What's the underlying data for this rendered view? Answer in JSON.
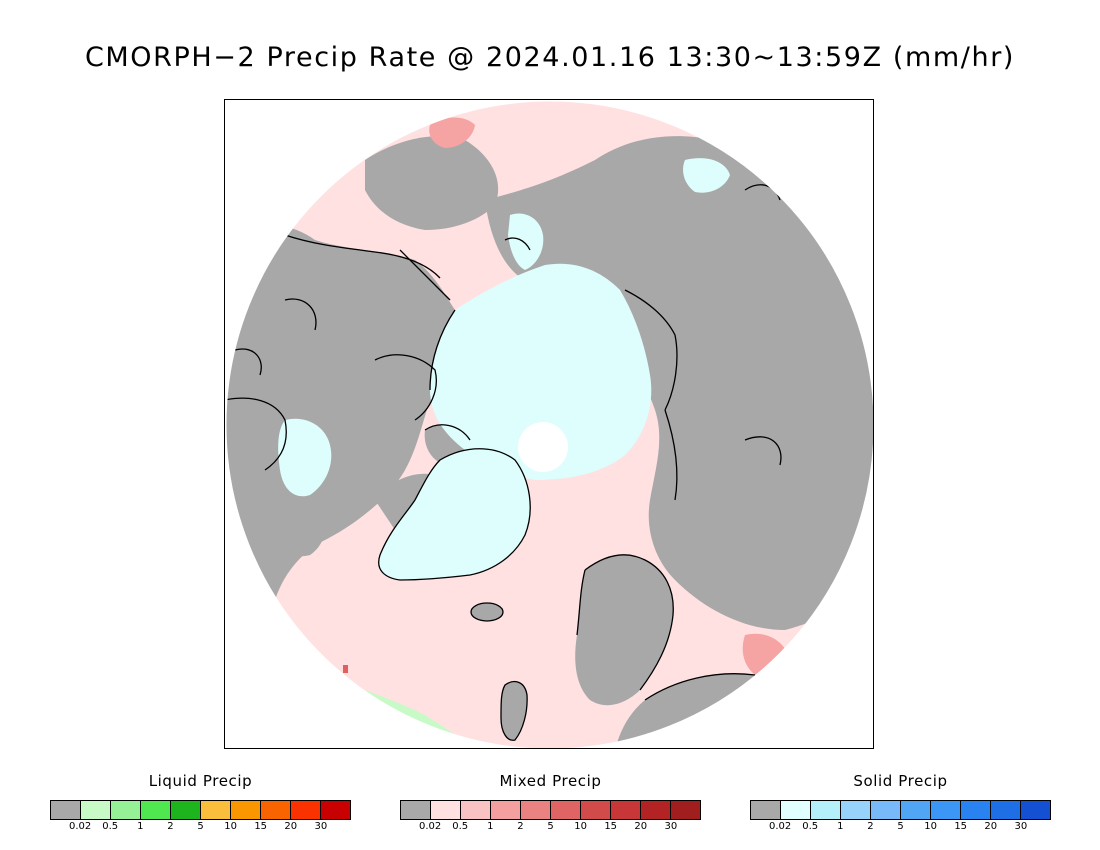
{
  "title": "CMORPH−2 Precip Rate @ 2024.01.16 13:30~13:59Z (mm/hr)",
  "map": {
    "projection": "polar stereographic (north pole)",
    "colors": {
      "no_precip": "#a8a8a8",
      "mixed_light": "#ffe1e1",
      "mixed_pink": "#f5a3a3",
      "solid_light": "#defdfd",
      "liquid_light": "#c8fac8",
      "coastline": "#000000"
    }
  },
  "legends": [
    {
      "title": "Liquid Precip",
      "colors": [
        "#a8a8a8",
        "#c8fac8",
        "#96f096",
        "#50e650",
        "#1eb41e",
        "#fabe3c",
        "#fa9600",
        "#fa6400",
        "#fa3200",
        "#c80000"
      ],
      "ticks": [
        "0.02",
        "0.5",
        "1",
        "2",
        "5",
        "10",
        "15",
        "20",
        "30"
      ]
    },
    {
      "title": "Mixed Precip",
      "colors": [
        "#a8a8a8",
        "#ffe1e1",
        "#fac3c3",
        "#f5a0a0",
        "#eb8282",
        "#e16464",
        "#d24b4b",
        "#c83737",
        "#b42323",
        "#a01e1e"
      ],
      "ticks": [
        "0.02",
        "0.5",
        "1",
        "2",
        "5",
        "10",
        "15",
        "20",
        "30"
      ]
    },
    {
      "title": "Solid Precip",
      "colors": [
        "#a8a8a8",
        "#e1ffff",
        "#b4f0fa",
        "#96d2fa",
        "#78b9fa",
        "#50a5f5",
        "#3c96f5",
        "#2882f0",
        "#1e6ee6",
        "#1450d2"
      ],
      "ticks": [
        "0.02",
        "0.5",
        "1",
        "2",
        "5",
        "10",
        "15",
        "20",
        "30"
      ]
    }
  ]
}
